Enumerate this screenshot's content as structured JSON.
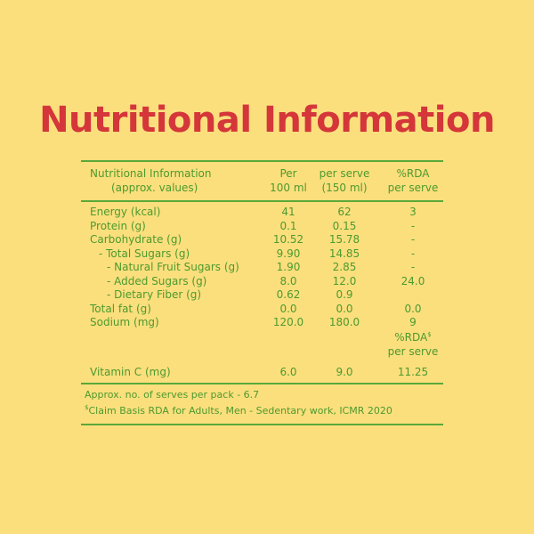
{
  "title": "Nutritional Information",
  "header": {
    "col1_line1": "Nutritional Information",
    "col1_line2": "(approx. values)",
    "col2_line1": "Per",
    "col2_line2": "100 ml",
    "col3_line1": "per serve",
    "col3_line2": "(150 ml)",
    "col4_line1": "%RDA",
    "col4_line2": "per serve"
  },
  "rows": [
    {
      "label": "Energy (kcal)",
      "per100": "41",
      "perServe": "62",
      "rda": "3"
    },
    {
      "label": "Protein (g)",
      "per100": "0.1",
      "perServe": "0.15",
      "rda": "-"
    },
    {
      "label": "Carbohydrate (g)",
      "per100": "10.52",
      "perServe": "15.78",
      "rda": "-"
    },
    {
      "label": "- Total Sugars (g)",
      "per100": "9.90",
      "perServe": "14.85",
      "rda": "-"
    },
    {
      "label": "- Natural Fruit Sugars (g)",
      "per100": "1.90",
      "perServe": "2.85",
      "rda": "-"
    },
    {
      "label": "- Added Sugars (g)",
      "per100": "8.0",
      "perServe": "12.0",
      "rda": "24.0"
    },
    {
      "label": "- Dietary Fiber (g)",
      "per100": "0.62",
      "perServe": "0.9",
      "rda": ""
    },
    {
      "label": "Total fat (g)",
      "per100": "0.0",
      "perServe": "0.0",
      "rda": "0.0"
    },
    {
      "label": "Sodium (mg)",
      "per100": "120.0",
      "perServe": "180.0",
      "rda": "9"
    }
  ],
  "subheader": {
    "rda_line1": "%RDA",
    "rda_sup": "$",
    "rda_line2": "per serve"
  },
  "vitamin_c": {
    "label": "Vitamin C (mg)",
    "per100": "6.0",
    "perServe": "9.0",
    "rda": "11.25"
  },
  "footer": {
    "serves_note": "Approx. no. of serves per pack - 6.7",
    "claim_sup": "$",
    "claim_note": "Claim Basis RDA for Adults, Men - Sedentary work, ICMR 2020"
  },
  "colors": {
    "background": "#fbdf7d",
    "title": "#d4363a",
    "text_and_rules": "#4c9a2e"
  }
}
